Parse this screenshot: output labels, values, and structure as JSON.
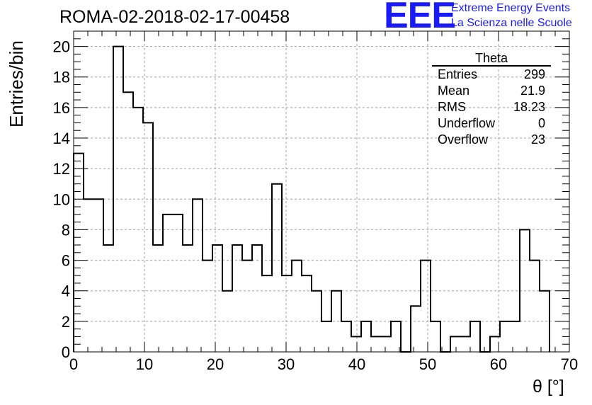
{
  "chart_data": {
    "type": "bar",
    "title": "ROMA-02-2018-02-17-00458",
    "xlabel": "θ [°]",
    "ylabel": "Entries/bin",
    "xlim": [
      0,
      70
    ],
    "ylim": [
      0,
      21
    ],
    "xticks": [
      0,
      10,
      20,
      30,
      40,
      50,
      60,
      70
    ],
    "yticks": [
      0,
      2,
      4,
      6,
      8,
      10,
      12,
      14,
      16,
      18,
      20
    ],
    "grid": true,
    "bin_width": 1.4,
    "values": [
      13,
      10,
      10,
      7,
      20,
      17,
      16,
      15,
      7,
      9,
      9,
      7,
      10,
      6,
      7,
      4,
      7,
      6,
      7,
      5,
      11,
      5,
      6,
      5,
      4,
      2,
      4,
      2,
      1,
      2,
      1,
      1,
      2,
      0,
      3,
      6,
      2,
      0,
      1,
      1,
      2,
      0,
      1,
      2,
      2,
      8,
      6,
      4
    ],
    "stats": {
      "name": "Theta",
      "rows": [
        {
          "label": "Entries",
          "value": "299"
        },
        {
          "label": "Mean",
          "value": "21.9"
        },
        {
          "label": "RMS",
          "value": "18.23"
        },
        {
          "label": "Underflow",
          "value": "0"
        },
        {
          "label": "Overflow",
          "value": "23"
        }
      ]
    }
  },
  "logo": {
    "mark": "EEE",
    "line1": "Extreme Energy Events",
    "line2": "La Scienza nelle Scuole"
  },
  "colors": {
    "line": "#000000",
    "grid": "#a0a0a0",
    "logo": "#1a1aff"
  }
}
